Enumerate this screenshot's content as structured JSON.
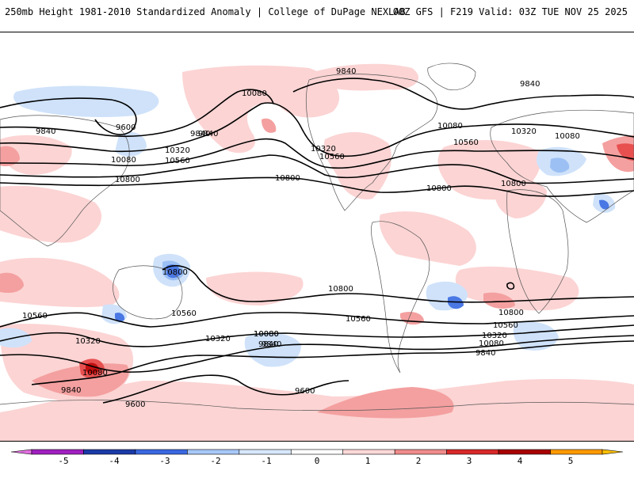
{
  "header": {
    "title": "250mb Height 1981-2010 Standardized Anomaly | College of DuPage NEXLAB",
    "run_info": "00Z GFS | F219 Valid: 03Z TUE NOV 25 2025"
  },
  "contour_labels": [
    {
      "key": "c1",
      "text": "9840"
    },
    {
      "key": "c2",
      "text": "9840"
    },
    {
      "key": "c3",
      "text": "9600"
    },
    {
      "key": "c4",
      "text": "9840"
    },
    {
      "key": "c5",
      "text": "10080"
    },
    {
      "key": "c6",
      "text": "10080"
    },
    {
      "key": "c7",
      "text": "10320"
    },
    {
      "key": "c8",
      "text": "10560"
    },
    {
      "key": "c9",
      "text": "10800"
    },
    {
      "key": "c10",
      "text": "10800"
    },
    {
      "key": "c11",
      "text": "10320"
    },
    {
      "key": "c12",
      "text": "10560"
    },
    {
      "key": "c13",
      "text": "9840"
    },
    {
      "key": "c14",
      "text": "10080"
    },
    {
      "key": "c15",
      "text": "10320"
    },
    {
      "key": "c16",
      "text": "10560"
    },
    {
      "key": "c17",
      "text": "10080"
    },
    {
      "key": "c18",
      "text": "10800"
    },
    {
      "key": "c19",
      "text": "10800"
    },
    {
      "key": "c20",
      "text": "10800"
    },
    {
      "key": "c21",
      "text": "10800"
    },
    {
      "key": "c22",
      "text": "10560"
    },
    {
      "key": "c23",
      "text": "10560"
    },
    {
      "key": "c24",
      "text": "10320"
    },
    {
      "key": "c25",
      "text": "10080"
    },
    {
      "key": "c26",
      "text": "9840"
    },
    {
      "key": "c27",
      "text": "10080"
    },
    {
      "key": "c28",
      "text": "9840"
    },
    {
      "key": "c29",
      "text": "9600"
    },
    {
      "key": "c30",
      "text": "10800"
    },
    {
      "key": "c31",
      "text": "10560"
    },
    {
      "key": "c32",
      "text": "10320"
    },
    {
      "key": "c33",
      "text": "10080"
    },
    {
      "key": "c34",
      "text": "9840"
    },
    {
      "key": "c35",
      "text": "10320"
    },
    {
      "key": "c36",
      "text": "10080"
    },
    {
      "key": "c37",
      "text": "9840"
    },
    {
      "key": "c38",
      "text": "9600"
    },
    {
      "key": "c39",
      "text": "10560"
    },
    {
      "key": "c40",
      "text": "9840"
    }
  ],
  "colorbar": {
    "labels": [
      "-5",
      "-4",
      "-3",
      "-2",
      "-1",
      "0",
      "1",
      "2",
      "3",
      "4",
      "5"
    ],
    "colors": [
      "#a020c0",
      "#1c3aa8",
      "#3a68e0",
      "#a8c8f8",
      "#d8e8fc",
      "#ffffff",
      "#fcd8d8",
      "#f08c8c",
      "#d82828",
      "#a80000",
      "#ff9a00"
    ],
    "min_color": "#e070e0",
    "max_color": "#ffc000"
  },
  "anomaly_colors": {
    "pos1": "#fcd4d4",
    "pos2": "#f4a0a0",
    "pos3": "#e85050",
    "pos4": "#c01010",
    "neg1": "#cfe2fa",
    "neg2": "#9cc0f4",
    "neg3": "#4a78e4",
    "neg4": "#1c3ab0"
  }
}
